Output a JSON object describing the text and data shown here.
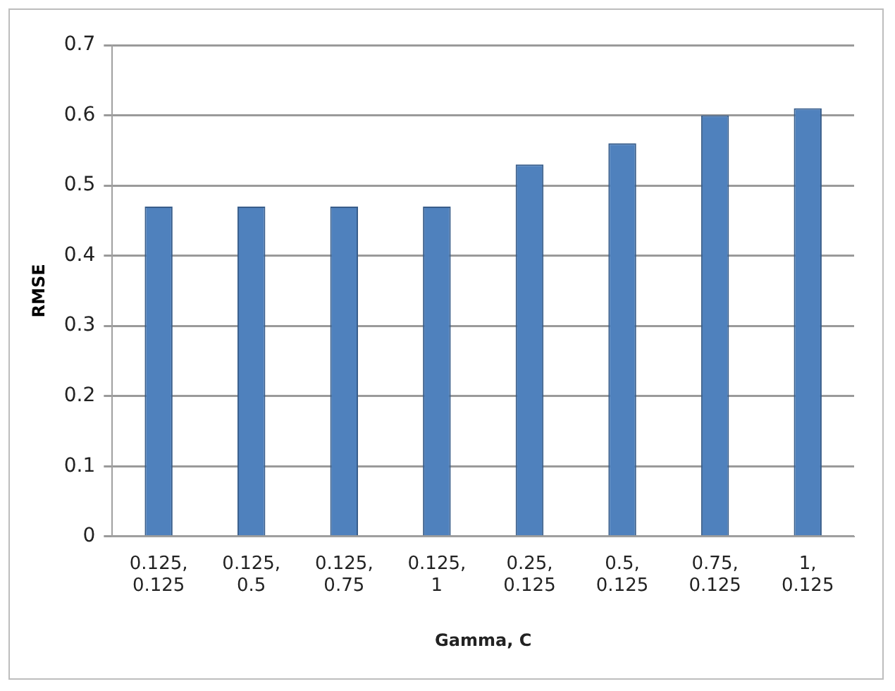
{
  "chart_data": {
    "type": "bar",
    "xlabel": "Gamma, C",
    "ylabel": "RMSE",
    "categories": [
      "0.125, 0.125",
      "0.125, 0.5",
      "0.125, 0.75",
      "0.125, 1",
      "0.25, 0.125",
      "0.5, 0.125",
      "0.75, 0.125",
      "1, 0.125"
    ],
    "values": [
      0.47,
      0.47,
      0.47,
      0.47,
      0.53,
      0.56,
      0.6,
      0.61
    ],
    "color": "#4f81bd",
    "ylim": [
      0,
      0.7
    ],
    "yticks": [
      0,
      0.1,
      0.2,
      0.3,
      0.4,
      0.5,
      0.6,
      0.7
    ],
    "grid": "y",
    "legend": false
  }
}
